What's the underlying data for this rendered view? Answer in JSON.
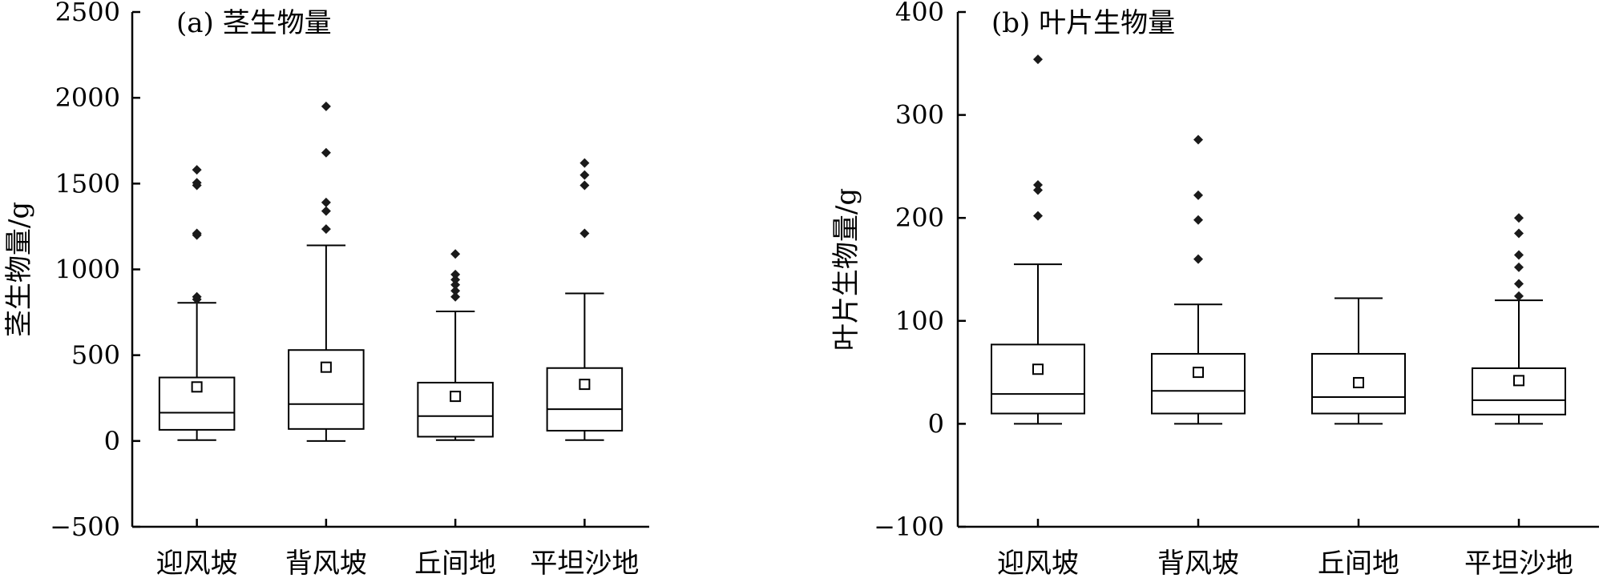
{
  "chart_data": [
    {
      "type": "box",
      "title": "(a) 茎生物量",
      "xlabel": "",
      "ylabel": "茎生物量/g",
      "ylim": [
        -500,
        2500
      ],
      "yticks": [
        -500,
        0,
        500,
        1000,
        1500,
        2000,
        2500
      ],
      "categories": [
        "迎风坡",
        "背风坡",
        "丘间地",
        "平坦沙地"
      ],
      "boxes": [
        {
          "whisker_low": 5,
          "q1": 65,
          "median": 165,
          "q3": 370,
          "whisker_high": 805,
          "mean": 315,
          "outliers": [
            825,
            840,
            1200,
            1210,
            1490,
            1505,
            1580
          ]
        },
        {
          "whisker_low": 0,
          "q1": 70,
          "median": 215,
          "q3": 530,
          "whisker_high": 1140,
          "mean": 430,
          "outliers": [
            1235,
            1340,
            1390,
            1680,
            1950
          ]
        },
        {
          "whisker_low": 5,
          "q1": 25,
          "median": 145,
          "q3": 340,
          "whisker_high": 755,
          "mean": 260,
          "outliers": [
            840,
            875,
            910,
            940,
            970,
            1090
          ]
        },
        {
          "whisker_low": 5,
          "q1": 60,
          "median": 185,
          "q3": 425,
          "whisker_high": 860,
          "mean": 330,
          "outliers": [
            1210,
            1490,
            1550,
            1620
          ]
        }
      ]
    },
    {
      "type": "box",
      "title": "(b) 叶片生物量",
      "xlabel": "",
      "ylabel": "叶片生物量/g",
      "ylim": [
        -100,
        400
      ],
      "yticks": [
        -100,
        0,
        100,
        200,
        300,
        400
      ],
      "categories": [
        "迎风坡",
        "背风坡",
        "丘间地",
        "平坦沙地"
      ],
      "boxes": [
        {
          "whisker_low": 0,
          "q1": 10,
          "median": 29,
          "q3": 77,
          "whisker_high": 155,
          "mean": 53,
          "outliers": [
            202,
            227,
            232,
            354
          ]
        },
        {
          "whisker_low": 0,
          "q1": 10,
          "median": 32,
          "q3": 68,
          "whisker_high": 116,
          "mean": 50,
          "outliers": [
            160,
            198,
            222,
            276
          ]
        },
        {
          "whisker_low": 0,
          "q1": 10,
          "median": 26,
          "q3": 68,
          "whisker_high": 122,
          "mean": 40,
          "outliers": []
        },
        {
          "whisker_low": 0,
          "q1": 9,
          "median": 23,
          "q3": 54,
          "whisker_high": 120,
          "mean": 42,
          "outliers": [
            124,
            136,
            152,
            164,
            185,
            200
          ]
        }
      ]
    }
  ]
}
